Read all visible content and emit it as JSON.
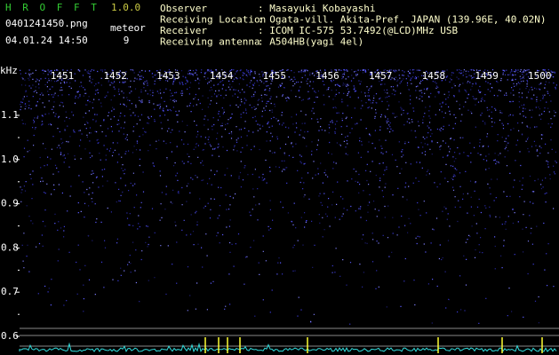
{
  "app": {
    "name": "H R O F F T",
    "version": "1.0.0",
    "file": "0401241450.png",
    "datetime": "04.01.24 14:50",
    "meteor_label": "meteor",
    "meteor_count": "9"
  },
  "info": [
    {
      "label": "Observer",
      "value": ": Masayuki Kobayashi"
    },
    {
      "label": "Receiving Location",
      "value": ": Ogata-vill. Akita-Pref. JAPAN (139.96E, 40.02N)"
    },
    {
      "label": "Receiver",
      "value": ": ICOM IC-575 53.7492(@LCD)MHz USB"
    },
    {
      "label": "Receiving antenna",
      "value": ": A504HB(yagi 4el)"
    }
  ],
  "spectrogram": {
    "y_unit": "kHz",
    "yticks": [
      "1.1",
      "1.0",
      "0.9",
      "0.8",
      "0.7",
      "0.6"
    ],
    "time_ticks": [
      "1451",
      "1452",
      "1453",
      "1454",
      "1455",
      "1456",
      "1457",
      "1458",
      "1459",
      "1500"
    ]
  }
}
